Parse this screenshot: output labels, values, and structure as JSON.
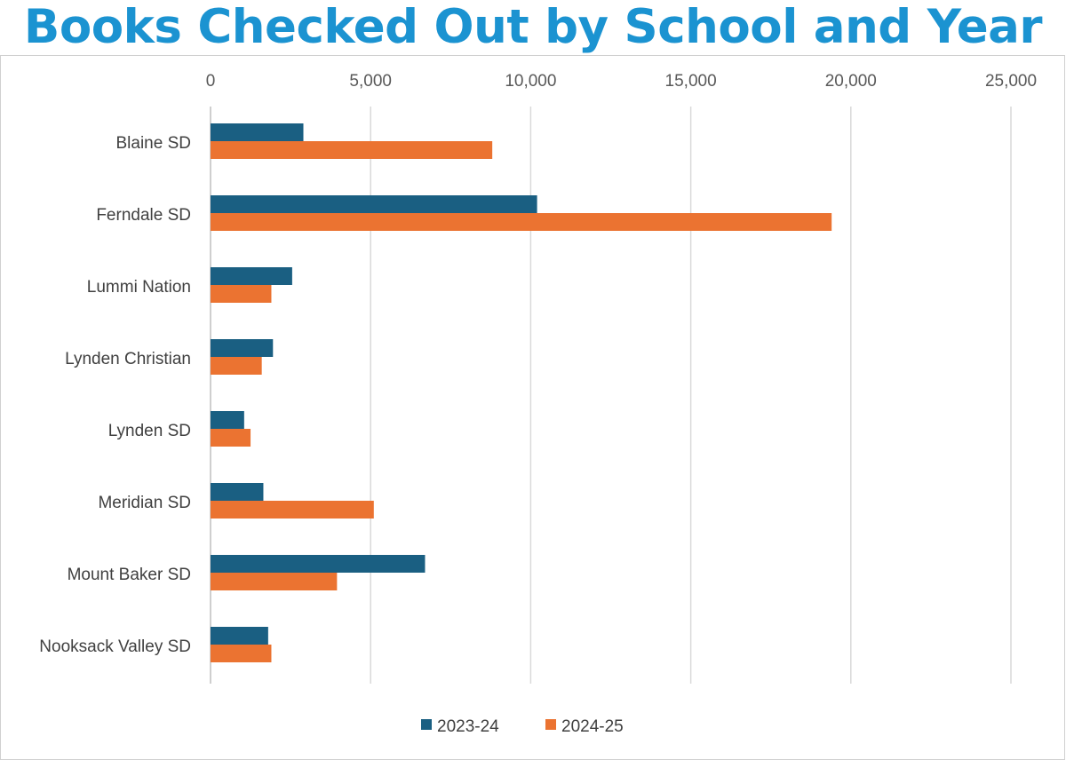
{
  "chart_data": {
    "type": "bar",
    "orientation": "horizontal",
    "title": "Books Checked Out by School and Year",
    "categories": [
      "Blaine SD",
      "Ferndale SD",
      "Lummi Nation",
      "Lynden Christian",
      "Lynden SD",
      "Meridian SD",
      "Mount Baker SD",
      "Nooksack Valley SD"
    ],
    "series": [
      {
        "name": "2023-24",
        "color": "#1a5f82",
        "values": [
          2900,
          10200,
          2550,
          1950,
          1050,
          1650,
          6700,
          1800
        ]
      },
      {
        "name": "2024-25",
        "color": "#eb7331",
        "values": [
          8800,
          19400,
          1900,
          1600,
          1250,
          5100,
          3950,
          1900
        ]
      }
    ],
    "xlim": [
      0,
      25000
    ],
    "x_ticks": [
      "0",
      "5,000",
      "10,000",
      "15,000",
      "20,000",
      "25,000"
    ],
    "x_axis_position": "top",
    "grid": true,
    "legend_position": "bottom"
  }
}
